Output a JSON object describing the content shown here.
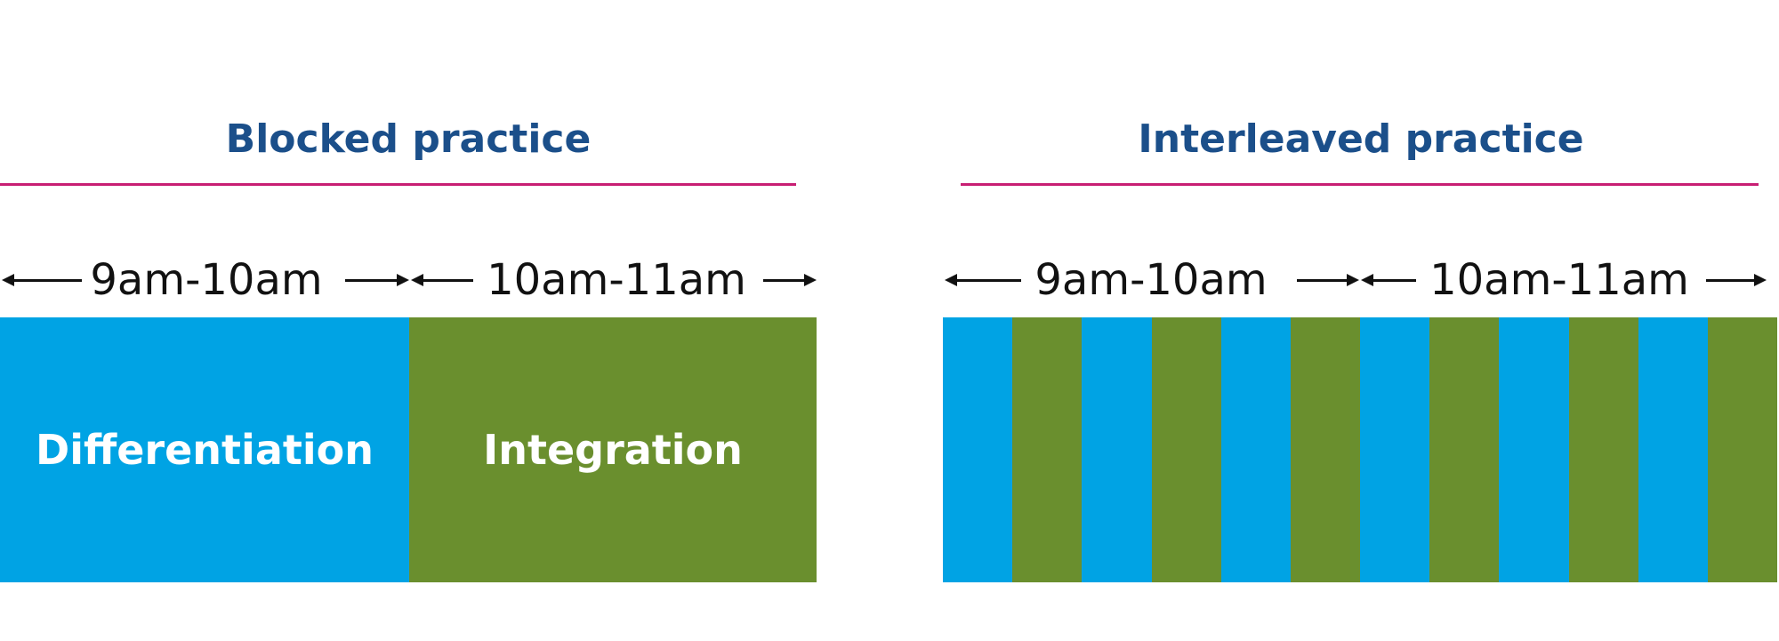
{
  "blocked": {
    "title": "Blocked practice",
    "times": [
      "9am-10am",
      "10am-11am"
    ],
    "blocks": [
      {
        "label": "Differentiation",
        "color": "#00a3e4"
      },
      {
        "label": "Integration",
        "color": "#6a8f2e"
      }
    ]
  },
  "interleaved": {
    "title": "Interleaved practice",
    "times": [
      "9am-10am",
      "10am-11am"
    ],
    "stripe_colors": [
      "#00a3e4",
      "#6a8f2e",
      "#00a3e4",
      "#6a8f2e",
      "#00a3e4",
      "#6a8f2e",
      "#00a3e4",
      "#6a8f2e",
      "#00a3e4",
      "#6a8f2e",
      "#00a3e4",
      "#6a8f2e"
    ]
  },
  "colors": {
    "title": "#1b4f8a",
    "rule": "#c81e73",
    "blue": "#00a3e4",
    "green": "#6a8f2e"
  }
}
